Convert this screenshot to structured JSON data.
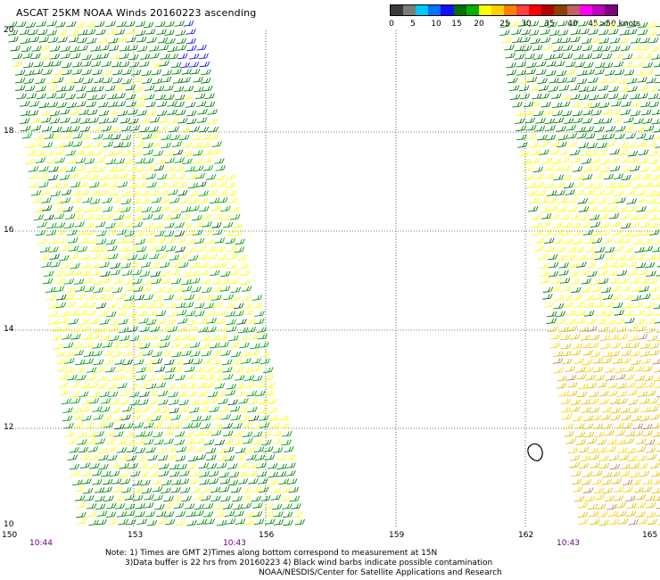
{
  "title": "ASCAT 25KM NOAA Winds 20160223 ascending",
  "legend": {
    "colors": [
      "#3a3a3a",
      "#7a7a7a",
      "#00c8ff",
      "#0070ff",
      "#1010ff",
      "#007000",
      "#00b000",
      "#ffff00",
      "#ffd000",
      "#ff8000",
      "#ff4040",
      "#ff0000",
      "#b00000",
      "#8b4000",
      "#c06060",
      "#ff00ff",
      "#c000c0",
      "#800080"
    ],
    "ticks": [
      "0",
      "5",
      "10",
      "15",
      "20",
      "25",
      "30",
      "35",
      "40",
      "45",
      ">50 knots"
    ]
  },
  "map": {
    "lat_labels": [
      "20",
      "18",
      "16",
      "14",
      "12",
      "10"
    ],
    "lon_labels": [
      "150",
      "153",
      "156",
      "159",
      "162",
      "165"
    ],
    "time_labels": [
      "10:44",
      "10:43",
      "10:43"
    ]
  },
  "notes": {
    "line1": "Note: 1) Times are GMT 2)Times along bottom correspond to measurement at 15N",
    "line2": "3)Data buffer is 22 hrs from 20160223 4) Black wind barbs indicate possible contamination",
    "line3": "NOAA/NESDIS/Center for Satellite Applications and Research"
  }
}
